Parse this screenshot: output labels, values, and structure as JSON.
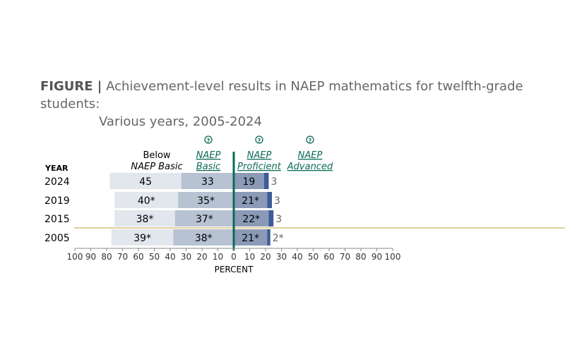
{
  "title_prefix": "FIGURE |",
  "title_line1": "Achievement-level results in NAEP mathematics for twelfth-grade students:",
  "title_line2": "Various years, 2005-2024",
  "chart_data": {
    "type": "bar",
    "stacked": "diverging",
    "categories": [
      "2024",
      "2019",
      "2015",
      "2005"
    ],
    "category_header": "YEAR",
    "series": [
      {
        "name": "Below NAEP Basic",
        "side": "left",
        "values": [
          45,
          40,
          38,
          39
        ],
        "labels": [
          "45",
          "40*",
          "38*",
          "39*"
        ],
        "color": "#e2e6ed"
      },
      {
        "name": "NAEP Basic",
        "side": "left",
        "values": [
          33,
          35,
          37,
          38
        ],
        "labels": [
          "33",
          "35*",
          "37*",
          "38*"
        ],
        "color": "#b7c2d2"
      },
      {
        "name": "NAEP Proficient",
        "side": "right",
        "values": [
          19,
          21,
          22,
          21
        ],
        "labels": [
          "19",
          "21*",
          "22*",
          "21*"
        ],
        "color": "#8b9ab6"
      },
      {
        "name": "NAEP Advanced",
        "side": "right",
        "values": [
          3,
          3,
          3,
          2
        ],
        "labels": [
          "3",
          "3",
          "3",
          "2*"
        ],
        "color": "#3e5b98"
      }
    ],
    "legend": {
      "below_line1": "Below",
      "below_line2": "NAEP Basic",
      "basic_line1": "NAEP",
      "basic_line2": "Basic",
      "proficient_line1": "NAEP",
      "proficient_line2": "Proficient",
      "advanced_line1": "NAEP",
      "advanced_line2": "Advanced",
      "help_icon": "question-circle-icon"
    },
    "xlabel": "PERCENT",
    "xticks": [
      "100",
      "90",
      "80",
      "70",
      "60",
      "50",
      "40",
      "30",
      "20",
      "10",
      "0",
      "10",
      "20",
      "30",
      "40",
      "50",
      "60",
      "70",
      "80",
      "90",
      "100"
    ],
    "xlim": [
      -100,
      100
    ],
    "accent_color": "#0b6b56",
    "trend_break_color": "#d6bf7c"
  }
}
